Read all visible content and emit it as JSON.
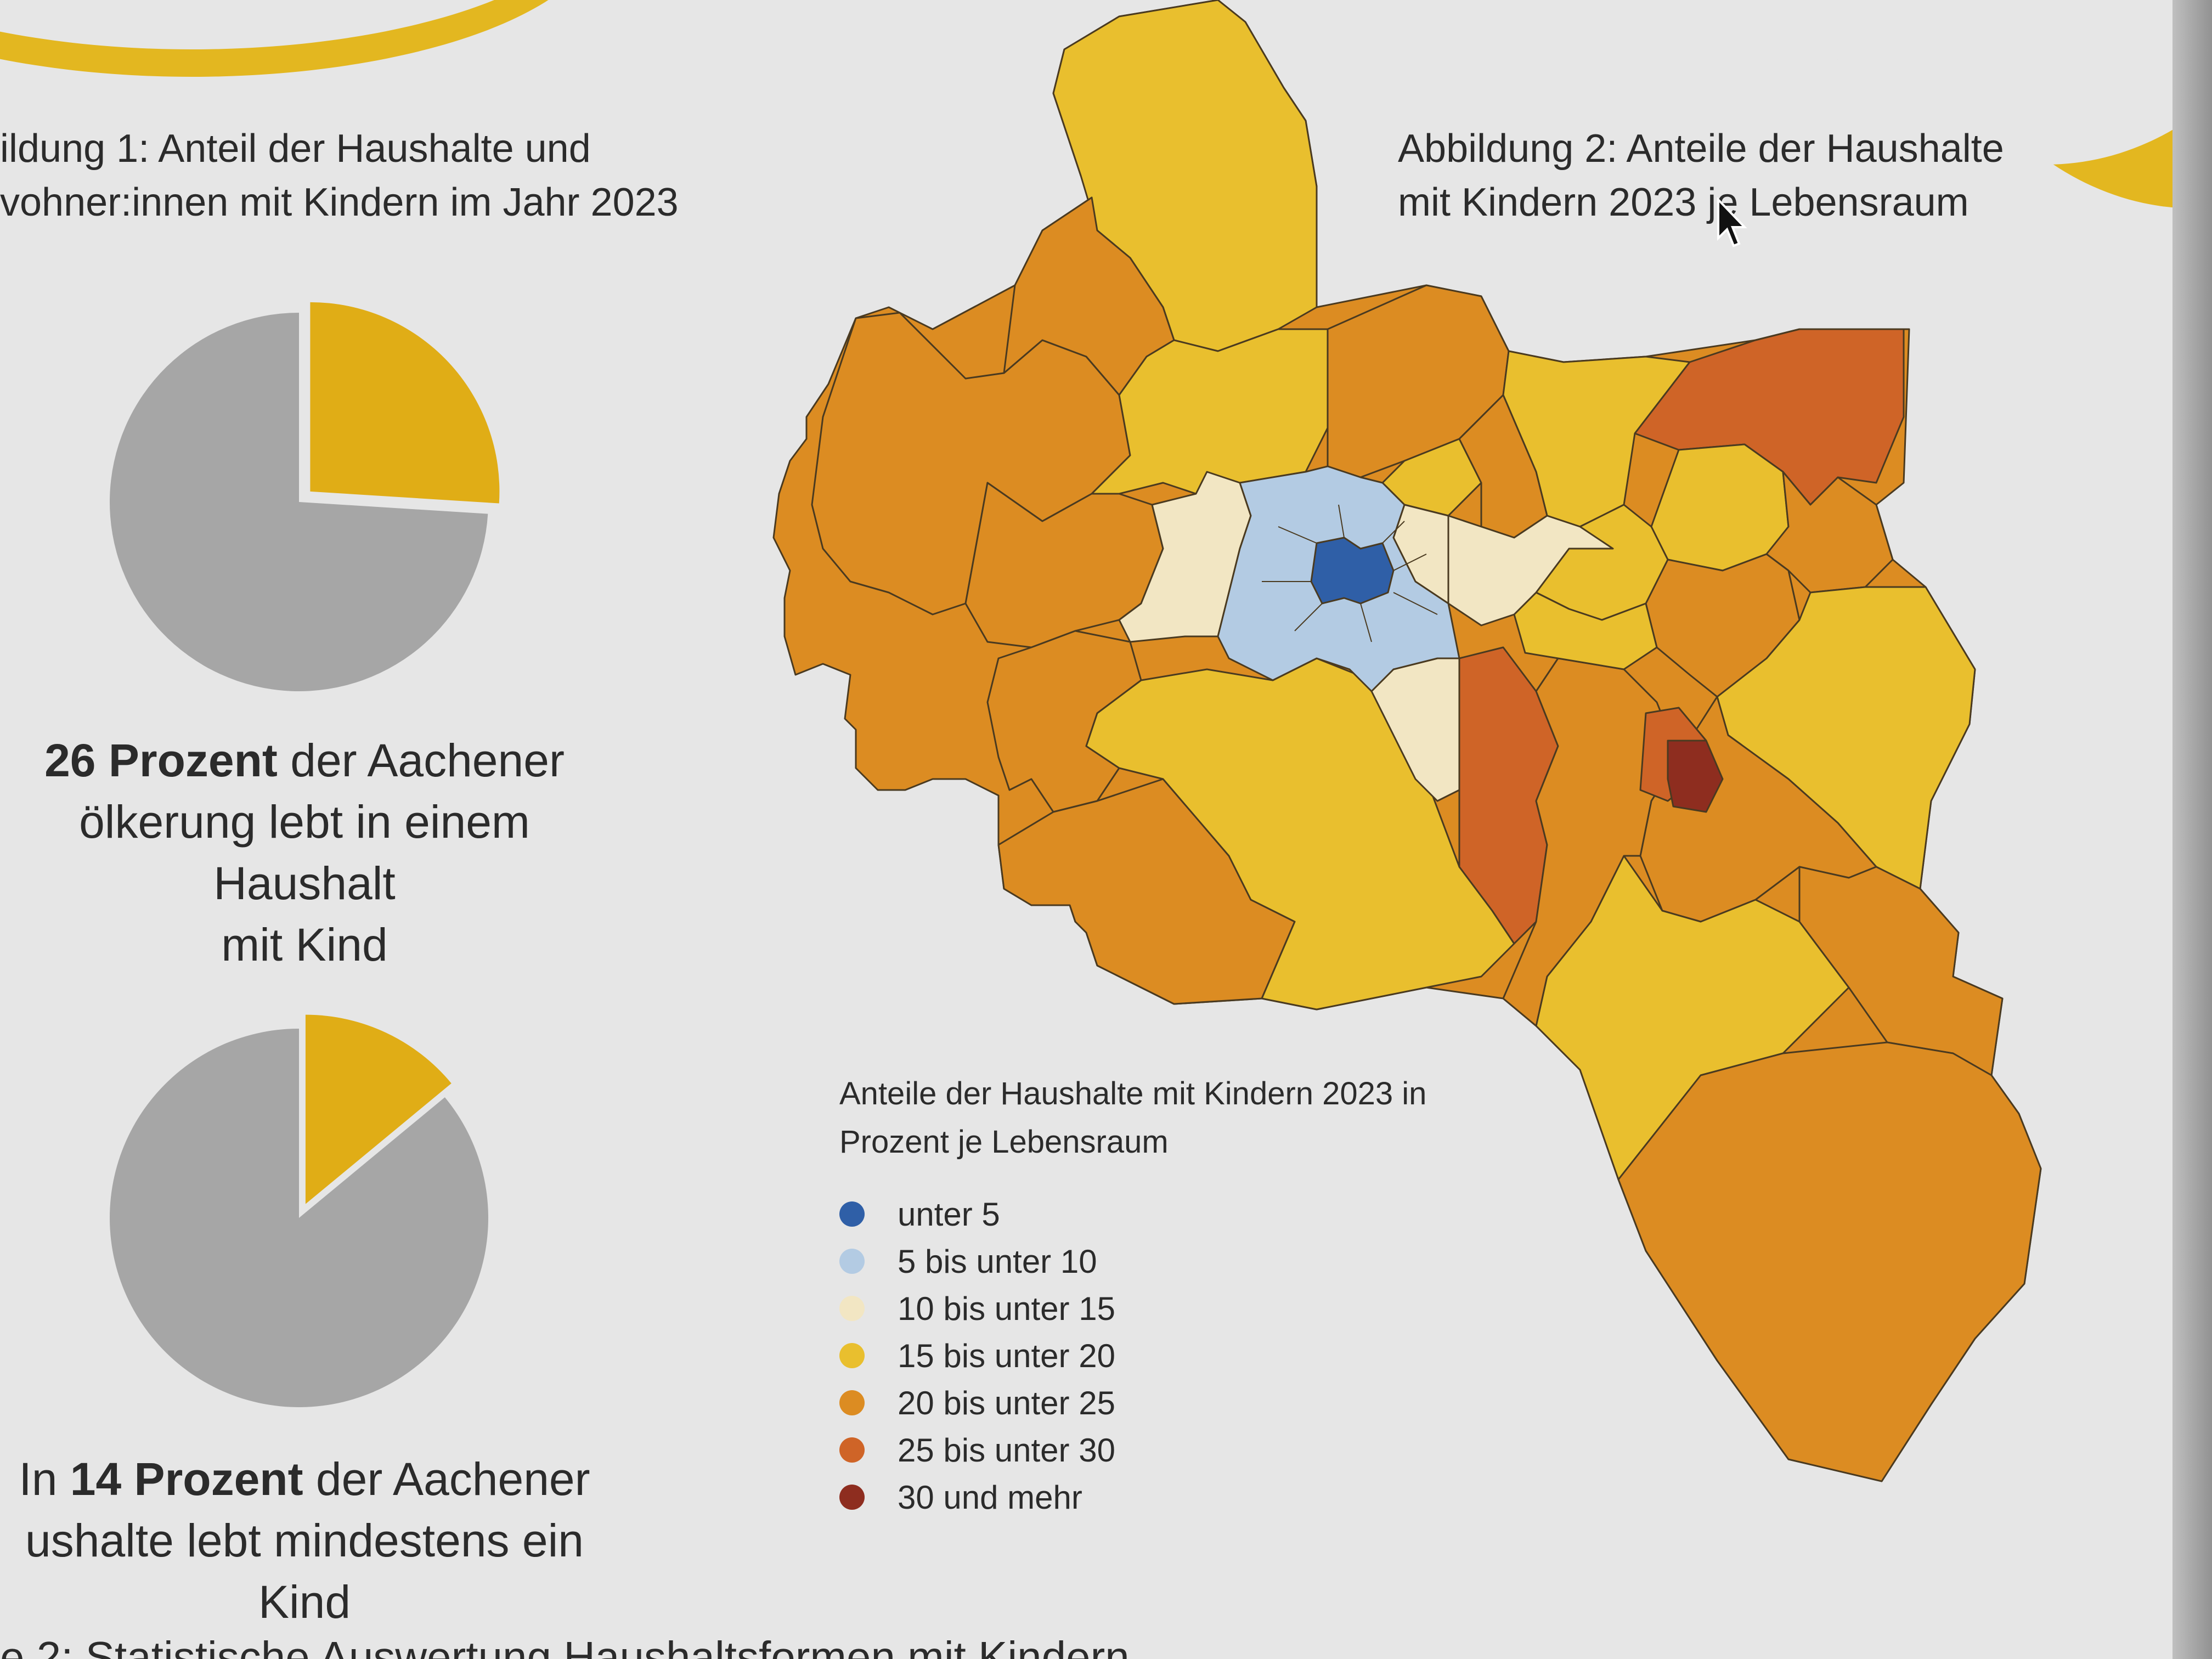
{
  "figure1": {
    "title_line1": "ildung 1: Anteil der Haushalte und",
    "title_line2": "vohner:innen mit Kindern im Jahr 2023"
  },
  "figure2": {
    "title_line1": "Abbildung 2: Anteile der Haushalte",
    "title_line2": "mit Kindern 2023 je Lebensraum"
  },
  "pie1": {
    "share_percent": 26,
    "caption_bold": "26 Prozent",
    "caption_rest_line1": " der Aachener",
    "caption_line2": "ölkerung lebt in einem Haushalt",
    "caption_line3": "mit Kind"
  },
  "pie2": {
    "share_percent": 14,
    "caption_prefix": "In ",
    "caption_bold": "14 Prozent",
    "caption_rest_line1": " der Aachener",
    "caption_line2": "ushalte lebt mindestens ein Kind"
  },
  "colors": {
    "pie_highlight": "#e0ad16",
    "pie_rest": "#a6a6a6",
    "accent_yellow": "#e3b720"
  },
  "map_legend": {
    "title_line1": "Anteile der Haushalte mit Kindern 2023 in",
    "title_line2": "Prozent je Lebensraum",
    "items": [
      {
        "label": "unter 5",
        "color": "#2f5fa7"
      },
      {
        "label": "5 bis unter 10",
        "color": "#b3cbe3"
      },
      {
        "label": "10 bis unter 15",
        "color": "#f2e6c3"
      },
      {
        "label": "15 bis unter 20",
        "color": "#e9bf2e"
      },
      {
        "label": "20 bis unter 25",
        "color": "#dc8c22"
      },
      {
        "label": "25 bis unter 30",
        "color": "#cf6427"
      },
      {
        "label": "30 und mehr",
        "color": "#8e2d1f"
      }
    ]
  },
  "bottom_text": "e 2: Statistische Auswertung Haushaltsformen mit Kindern"
}
